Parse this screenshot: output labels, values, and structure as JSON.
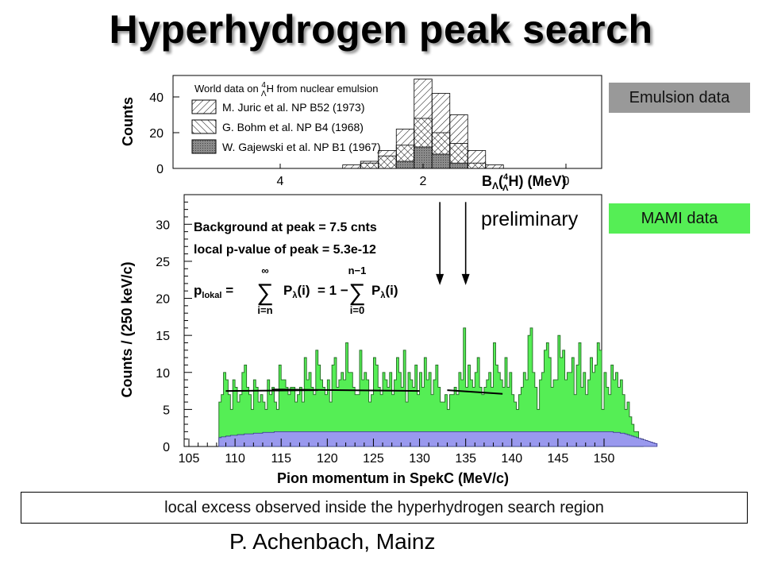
{
  "title": "Hyperhydrogen peak search",
  "tags": {
    "emulsion": "Emulsion data",
    "mami": "MAMI data"
  },
  "preliminary": "preliminary",
  "footer_note": "local excess observed inside the hyperhydrogen search region",
  "author": "P. Achenbach, Mainz",
  "colors": {
    "signal_fill": "#55ee55",
    "background_fill": "#9999ee",
    "tag_gray": "#999999",
    "tag_green": "#55ee55"
  },
  "chart_data": [
    {
      "type": "bar",
      "title": "",
      "ylabel": "Counts",
      "xlabel_parts": [
        "B",
        "Λ",
        "(",
        "4",
        "Λ",
        "H) (MeV)"
      ],
      "legend_title_parts": [
        "World data on ",
        "4",
        "Λ",
        "H from nuclear emulsion"
      ],
      "legend_position": "top-left",
      "x_ticks": [
        4,
        2,
        0
      ],
      "x_reversed": true,
      "xlim": [
        5.5,
        -0.5
      ],
      "y_ticks": [
        0,
        20,
        40
      ],
      "ylim": [
        0,
        52
      ],
      "bin_width": 0.25,
      "series": [
        {
          "name": "M. Juric et al. NP B52 (1973)",
          "pattern": "hatch-right",
          "x": [
            3.0,
            2.75,
            2.5,
            2.25,
            2.0,
            1.75,
            1.5,
            1.25,
            1.0
          ],
          "values": [
            2,
            4,
            10,
            22,
            50,
            42,
            30,
            10,
            2
          ]
        },
        {
          "name": "G. Bohm et al. NP B4 (1968)",
          "pattern": "hatch-left",
          "x": [
            2.75,
            2.5,
            2.25,
            2.0,
            1.75,
            1.5,
            1.25
          ],
          "values": [
            3,
            7,
            13,
            28,
            20,
            14,
            3
          ]
        },
        {
          "name": "W. Gajewski et al. NP B1 (1967)",
          "pattern": "solid-gray",
          "x": [
            2.25,
            2.0,
            1.75,
            1.5
          ],
          "values": [
            4,
            12,
            8,
            3
          ]
        }
      ]
    },
    {
      "type": "bar",
      "title": "",
      "xlabel": "Pion momentum in SpekC (MeV/c)",
      "ylabel": "Counts / (250 keV/c)",
      "xlim": [
        105,
        150
      ],
      "ylim": [
        0,
        34
      ],
      "x_ticks": [
        105,
        110,
        115,
        120,
        125,
        130,
        135,
        140,
        145,
        150
      ],
      "y_ticks": [
        0,
        5,
        10,
        15,
        20,
        25,
        30
      ],
      "bin_width": 0.25,
      "annotations": [
        "Background at peak = 7.5 cnts",
        "local p-value of peak = 5.3e-12"
      ],
      "formula": {
        "lhs": "p",
        "lhs_sub": "lokal",
        "sum1_upper": "∞",
        "sum1_lower": "i=n",
        "term": "P",
        "term_sub": "λ",
        "term_arg": "(i)",
        "middle": "= 1 −",
        "sum2_upper": "n−1",
        "sum2_lower": "i=0"
      },
      "series": [
        {
          "name": "",
          "x_start": 108.25,
          "values": [
            6,
            7,
            10,
            9,
            7,
            5,
            9,
            8,
            6,
            7,
            10,
            11,
            8,
            7,
            5,
            9,
            8,
            6,
            7,
            6,
            5,
            9,
            7,
            8,
            6,
            5,
            11,
            9,
            9,
            8,
            7,
            8,
            8,
            6,
            7,
            8,
            6,
            12,
            9,
            10,
            8,
            7,
            13,
            11,
            9,
            8,
            7,
            9,
            6,
            11,
            12,
            8,
            9,
            10,
            9,
            14,
            10,
            10,
            8,
            7,
            7,
            13,
            9,
            10,
            9,
            6,
            7,
            12,
            11,
            8,
            7,
            10,
            9,
            8,
            10,
            7,
            9,
            12,
            10,
            8,
            13,
            6,
            10,
            9,
            8,
            11,
            7,
            10,
            8,
            12,
            9,
            10,
            7,
            9,
            11,
            8,
            6,
            6,
            7,
            5,
            7,
            7,
            8,
            7,
            10,
            9,
            16,
            8,
            11,
            9,
            8,
            10,
            12,
            8,
            7,
            8,
            9,
            10,
            8,
            14,
            11,
            10,
            9,
            8,
            12,
            8,
            10,
            7,
            6,
            5,
            7,
            8,
            10,
            9,
            15,
            16,
            10,
            8,
            5,
            9,
            10,
            13,
            14,
            12,
            8,
            9,
            9,
            15,
            12,
            13,
            9,
            10,
            10,
            12,
            7,
            11,
            14,
            8,
            10,
            7,
            9,
            12,
            10,
            11,
            14,
            13,
            5,
            10,
            8,
            7,
            11,
            9,
            10,
            8,
            9,
            7,
            5,
            6,
            4,
            3,
            2,
            2,
            1,
            1
          ]
        },
        {
          "name": "",
          "x_start": 108.25,
          "values": [
            1.2,
            1.3,
            1.3,
            1.4,
            1.4,
            1.5,
            1.5,
            1.5,
            1.6,
            1.6,
            1.6,
            1.7,
            1.7,
            1.7,
            1.7,
            1.8,
            1.8,
            1.8,
            1.8,
            1.9,
            1.9,
            1.9,
            1.9,
            1.9,
            2,
            2,
            2,
            2,
            2,
            2,
            2,
            2,
            2,
            2,
            2,
            2,
            2,
            2,
            2,
            2,
            2,
            2,
            2,
            2,
            2,
            2,
            2,
            2,
            2,
            2,
            2,
            2,
            2,
            2,
            2,
            2,
            2,
            2,
            2,
            2,
            2,
            2,
            2,
            2,
            2,
            2,
            2,
            2,
            2,
            2,
            2,
            2,
            2,
            2,
            2,
            2,
            2,
            2,
            2,
            2,
            2,
            2,
            2,
            2,
            2,
            2,
            2,
            2,
            2,
            2,
            2,
            2,
            2,
            2,
            2,
            2,
            2,
            2,
            2,
            2,
            2,
            2,
            2,
            2,
            2,
            2,
            2,
            2,
            2,
            2,
            2,
            2,
            2,
            2,
            2,
            2,
            2,
            2,
            2,
            2,
            2,
            2,
            2,
            2,
            2,
            2,
            2,
            2,
            2,
            2,
            2,
            2,
            2,
            2,
            2,
            2,
            2,
            2,
            2,
            2,
            2,
            2,
            2,
            2,
            2,
            2,
            2,
            2,
            2,
            2,
            2,
            2,
            2,
            2,
            2,
            2,
            2,
            2,
            2,
            2,
            2,
            2,
            2,
            2,
            2,
            2,
            2,
            2,
            2,
            2,
            2,
            1.9,
            1.9,
            1.9,
            1.8,
            1.8,
            1.7,
            1.6,
            1.5,
            1.4,
            1.3,
            1.2,
            1.1,
            1,
            0.9,
            0.8,
            0.7,
            0.6,
            0.5,
            0.4
          ]
        }
      ],
      "background_lines": [
        {
          "x": [
            109,
            119
          ],
          "y": [
            7.5,
            7.6
          ]
        },
        {
          "x": [
            114,
            130
          ],
          "y": [
            7.7,
            7.5
          ]
        },
        {
          "x": [
            133,
            139
          ],
          "y": [
            7.6,
            7.1
          ]
        }
      ],
      "arrows_x": [
        132.2,
        135.0
      ],
      "arrows_y_range": [
        33,
        22
      ]
    }
  ]
}
